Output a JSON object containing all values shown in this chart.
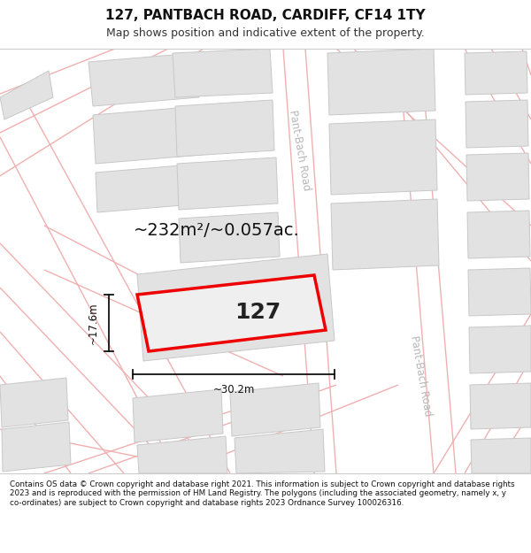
{
  "title": "127, PANTBACH ROAD, CARDIFF, CF14 1TY",
  "subtitle": "Map shows position and indicative extent of the property.",
  "footer": "Contains OS data © Crown copyright and database right 2021. This information is subject to Crown copyright and database rights 2023 and is reproduced with the permission of HM Land Registry. The polygons (including the associated geometry, namely x, y co-ordinates) are subject to Crown copyright and database rights 2023 Ordnance Survey 100026316.",
  "map_bg": "#f7f5f5",
  "road_color": "#f0b0b0",
  "block_fill": "#e2e2e2",
  "block_edge": "#c8c8c8",
  "property_fill": "#efefef",
  "property_stroke": "#ee0000",
  "area_text": "~232m²/~0.057ac.",
  "number_text": "127",
  "width_label": "~30.2m",
  "height_label": "~17.6m",
  "road_label": "Pant-Bach Road",
  "dim_color": "#111111",
  "title_color": "#111111",
  "footer_color": "#111111",
  "title_fontsize": 11,
  "subtitle_fontsize": 9,
  "footer_fontsize": 6.3,
  "area_fontsize": 14,
  "number_fontsize": 18,
  "dim_fontsize": 8.5,
  "road_label_fontsize": 8.5
}
